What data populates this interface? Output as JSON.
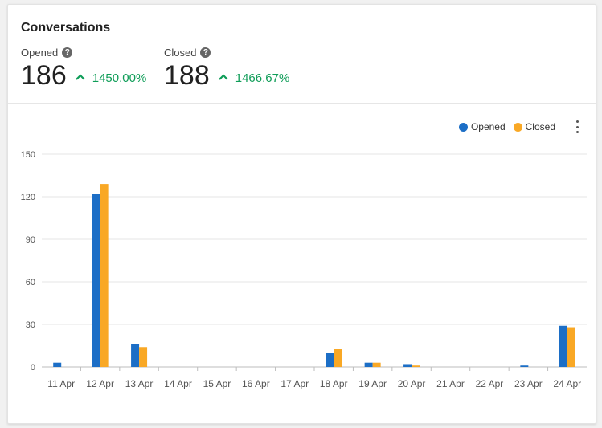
{
  "header": {
    "title": "Conversations"
  },
  "stats": [
    {
      "label": "Opened",
      "value": "186",
      "change": "1450.00%",
      "help": "?"
    },
    {
      "label": "Closed",
      "value": "188",
      "change": "1466.67%",
      "help": "?"
    }
  ],
  "colors": {
    "opened": "#1c6ec6",
    "closed": "#f9a825",
    "trend_up": "#0f9d58"
  },
  "icons": {
    "trend": "chevron-up-icon",
    "help": "help-circle-icon",
    "menu": "more-vert-icon"
  },
  "chart_data": {
    "type": "bar",
    "categories": [
      "11 Apr",
      "12 Apr",
      "13 Apr",
      "14 Apr",
      "15 Apr",
      "16 Apr",
      "17 Apr",
      "18 Apr",
      "19 Apr",
      "20 Apr",
      "21 Apr",
      "22 Apr",
      "23 Apr",
      "24 Apr"
    ],
    "series": [
      {
        "name": "Opened",
        "color": "#1c6ec6",
        "values": [
          3,
          122,
          16,
          0,
          0,
          0,
          0,
          10,
          3,
          2,
          0,
          0,
          1,
          29
        ]
      },
      {
        "name": "Closed",
        "color": "#f9a825",
        "values": [
          0,
          129,
          14,
          0,
          0,
          0,
          0,
          13,
          3,
          1,
          0,
          0,
          0,
          28
        ]
      }
    ],
    "yticks": [
      0,
      30,
      60,
      90,
      120,
      150
    ],
    "ylim": [
      0,
      150
    ],
    "grid": true,
    "legend_position": "top-right",
    "title": "",
    "xlabel": "",
    "ylabel": ""
  }
}
